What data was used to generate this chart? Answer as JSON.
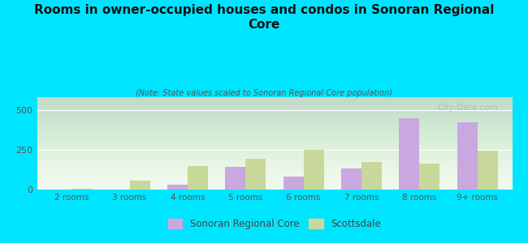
{
  "categories": [
    "2 rooms",
    "3 rooms",
    "4 rooms",
    "5 rooms",
    "6 rooms",
    "7 rooms",
    "8 rooms",
    "9+ rooms"
  ],
  "sonoran": [
    2,
    0,
    30,
    145,
    80,
    130,
    450,
    420
  ],
  "scottsdale": [
    4,
    55,
    150,
    195,
    250,
    175,
    165,
    245
  ],
  "sonoran_color": "#c9a8e0",
  "scottsdale_color": "#c8d89a",
  "title": "Rooms in owner-occupied houses and condos in Sonoran Regional\nCore",
  "subtitle": "(Note: State values scaled to Sonoran Regional Core population)",
  "background_outer": "#00e5ff",
  "ylabel_values": [
    0,
    250,
    500
  ],
  "ylim": [
    0,
    580
  ],
  "watermark": "City-Data.com",
  "legend_sonoran": "Sonoran Regional Core",
  "legend_scottsdale": "Scottsdale"
}
